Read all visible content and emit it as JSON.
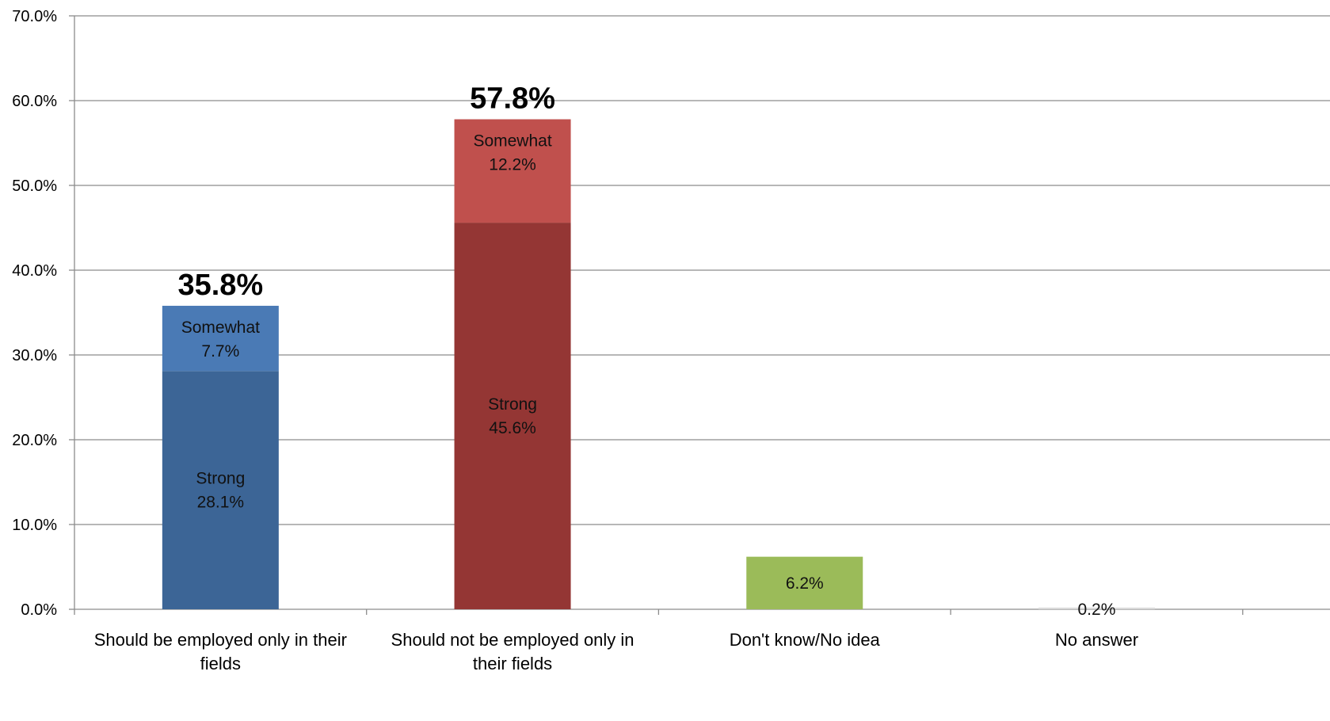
{
  "chart_data": {
    "type": "bar",
    "stacked": true,
    "title": "",
    "xlabel": "",
    "ylabel": "",
    "ylim": [
      0,
      70
    ],
    "y_tick_values": [
      0,
      10,
      20,
      30,
      40,
      50,
      60,
      70
    ],
    "y_tick_labels": [
      "0.0%",
      "10.0%",
      "20.0%",
      "30.0%",
      "40.0%",
      "50.0%",
      "60.0%",
      "70.0%"
    ],
    "grid": true,
    "legend": "none",
    "categories": [
      {
        "lines": [
          "Should be employed only in their",
          "fields"
        ]
      },
      {
        "lines": [
          "Should not be employed only in",
          "their fields"
        ]
      },
      {
        "lines": [
          "Don't know/No idea"
        ]
      },
      {
        "lines": [
          "No answer"
        ]
      }
    ],
    "bars": [
      {
        "segments": [
          {
            "value": 28.1,
            "label": [
              "Strong",
              "28.1%"
            ],
            "color": "#3C6596"
          },
          {
            "value": 7.7,
            "label": [
              "Somewhat",
              "7.7%"
            ],
            "color": "#4A7AB5"
          }
        ],
        "total_label": "35.8%"
      },
      {
        "segments": [
          {
            "value": 45.6,
            "label": [
              "Strong",
              "45.6%"
            ],
            "color": "#943634"
          },
          {
            "value": 12.2,
            "label": [
              "Somewhat",
              "12.2%"
            ],
            "color": "#C0504D"
          }
        ],
        "total_label": "57.8%"
      },
      {
        "segments": [
          {
            "value": 6.2,
            "label": [
              "6.2%"
            ],
            "color": "#9BBB59"
          }
        ],
        "total_label": ""
      },
      {
        "segments": [
          {
            "value": 0.2,
            "label": [
              "0.2%"
            ],
            "color": "#D9D9D9"
          }
        ],
        "total_label": ""
      }
    ]
  }
}
